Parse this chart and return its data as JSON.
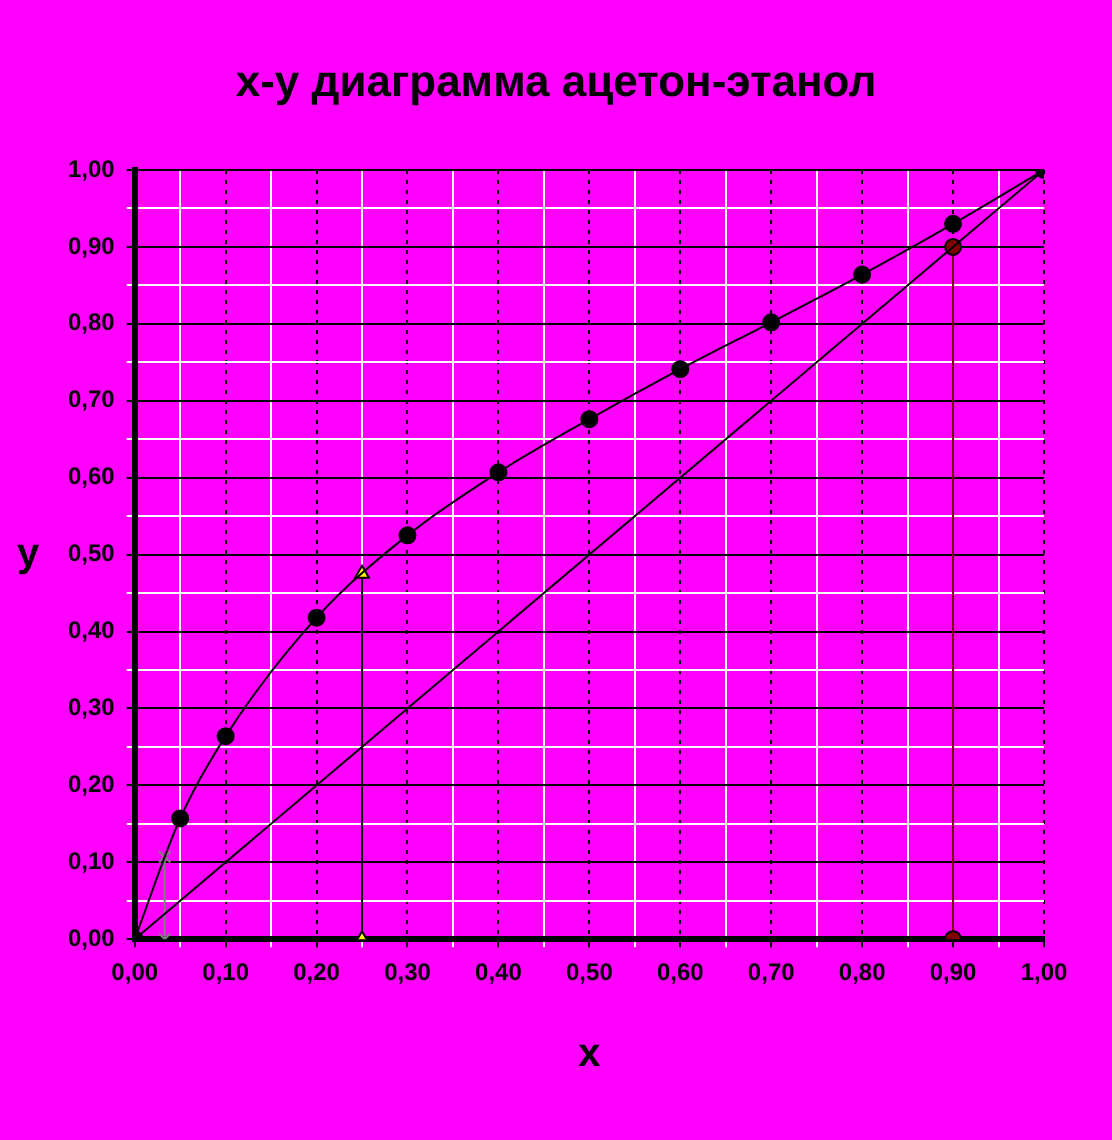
{
  "chart_data": {
    "type": "line",
    "title": "x-y диаграмма ацетон-этанол",
    "xlabel": "x",
    "ylabel": "y",
    "xlim": [
      0,
      1
    ],
    "ylim": [
      0,
      1
    ],
    "xticks": [
      {
        "value": 0,
        "label": "0,00"
      },
      {
        "value": 0.05,
        "label": null
      },
      {
        "value": 0.1,
        "label": "0,10"
      },
      {
        "value": 0.15,
        "label": null
      },
      {
        "value": 0.2,
        "label": "0,20"
      },
      {
        "value": 0.25,
        "label": null
      },
      {
        "value": 0.3,
        "label": "0,30"
      },
      {
        "value": 0.35,
        "label": null
      },
      {
        "value": 0.4,
        "label": "0,40"
      },
      {
        "value": 0.45,
        "label": null
      },
      {
        "value": 0.5,
        "label": "0,50"
      },
      {
        "value": 0.55,
        "label": null
      },
      {
        "value": 0.6,
        "label": "0,60"
      },
      {
        "value": 0.65,
        "label": null
      },
      {
        "value": 0.7,
        "label": "0,70"
      },
      {
        "value": 0.75,
        "label": null
      },
      {
        "value": 0.8,
        "label": "0,80"
      },
      {
        "value": 0.85,
        "label": null
      },
      {
        "value": 0.9,
        "label": "0,90"
      },
      {
        "value": 0.95,
        "label": null
      },
      {
        "value": 1,
        "label": "1,00"
      }
    ],
    "yticks": [
      {
        "value": 0,
        "label": "0,00"
      },
      {
        "value": 0.05,
        "label": null
      },
      {
        "value": 0.1,
        "label": "0,10"
      },
      {
        "value": 0.15,
        "label": null
      },
      {
        "value": 0.2,
        "label": "0,20"
      },
      {
        "value": 0.25,
        "label": null
      },
      {
        "value": 0.3,
        "label": "0,30"
      },
      {
        "value": 0.35,
        "label": null
      },
      {
        "value": 0.4,
        "label": "0,40"
      },
      {
        "value": 0.45,
        "label": null
      },
      {
        "value": 0.5,
        "label": "0,50"
      },
      {
        "value": 0.55,
        "label": null
      },
      {
        "value": 0.6,
        "label": "0,60"
      },
      {
        "value": 0.65,
        "label": null
      },
      {
        "value": 0.7,
        "label": "0,70"
      },
      {
        "value": 0.75,
        "label": null
      },
      {
        "value": 0.8,
        "label": "0,80"
      },
      {
        "value": 0.85,
        "label": null
      },
      {
        "value": 0.9,
        "label": "0,90"
      },
      {
        "value": 0.95,
        "label": null
      },
      {
        "value": 1,
        "label": "1,00"
      }
    ],
    "grid": true,
    "legend": false,
    "series": [
      {
        "x": [
          0,
          0.05,
          0.1,
          0.2,
          0.3,
          0.4,
          0.5,
          0.6,
          0.7,
          0.8,
          0.9,
          1
        ],
        "values": [
          0,
          0.157,
          0.264,
          0.418,
          0.525,
          0.607,
          0.676,
          0.741,
          0.802,
          0.864,
          0.93,
          1
        ],
        "color": "#000000",
        "marker": "circle"
      },
      {
        "x": [
          0,
          1
        ],
        "values": [
          0,
          1
        ],
        "color": "#000000",
        "marker": "none"
      },
      {
        "x": [
          0.25,
          0.25
        ],
        "values": [
          0,
          0.475
        ],
        "color": "#ffff00",
        "marker": "triangle"
      },
      {
        "x": [
          0.9,
          0.9
        ],
        "values": [
          0,
          0.9
        ],
        "color": "#800000",
        "marker": "circle"
      },
      {
        "x": [
          0.033,
          0.033
        ],
        "values": [
          0,
          0.107
        ],
        "color": "#808080",
        "marker": "cross"
      }
    ]
  }
}
